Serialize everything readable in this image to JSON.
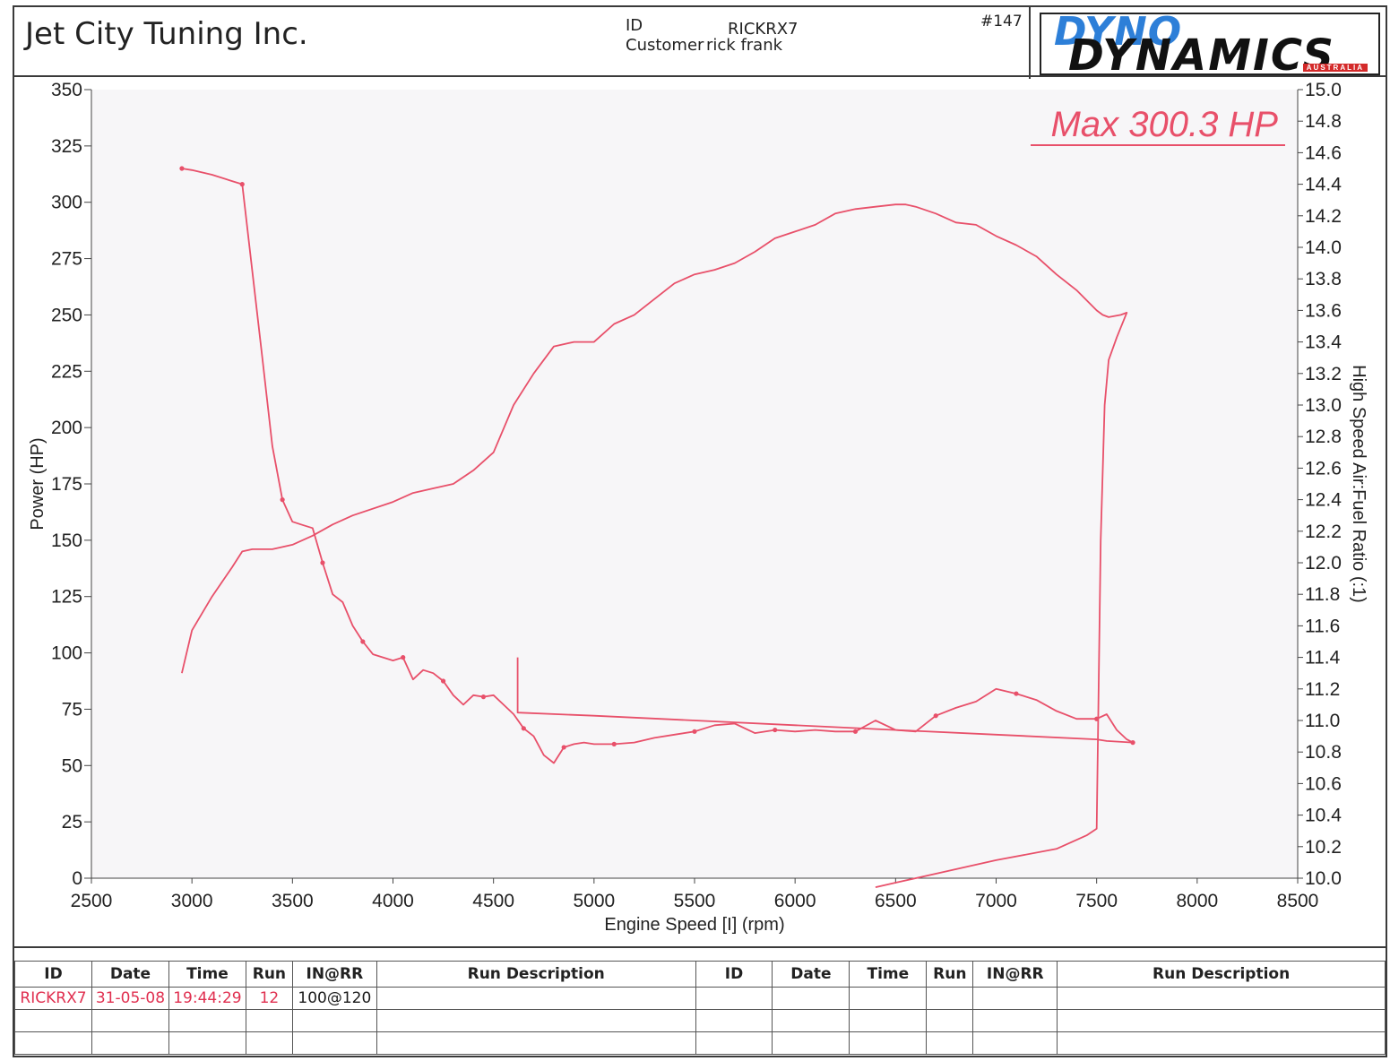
{
  "header": {
    "company": "Jet City Tuning Inc.",
    "id_label": "ID",
    "id_value": "RICKRX7",
    "customer_label": "Customer",
    "customer_value": "rick frank",
    "sheet_number": "#147",
    "logo_line1": "DYNO",
    "logo_line2": "DYNAMICS",
    "logo_sub": "AUSTRALIA"
  },
  "chart_data": {
    "type": "line",
    "annotation": "Max 300.3 HP",
    "xlabel": "Engine Speed [I] (rpm)",
    "ylabel_left": "Power (HP)",
    "ylabel_right": "High Speed Air:Fuel Ratio (:1)",
    "xlim": [
      2500,
      8500
    ],
    "ylim_left": [
      0,
      350
    ],
    "ylim_right": [
      10.0,
      15.0
    ],
    "x_ticks": [
      "2500",
      "3000",
      "3500",
      "4000",
      "4500",
      "5000",
      "5500",
      "6000",
      "6500",
      "7000",
      "7500",
      "8000",
      "8500"
    ],
    "y_left_ticks": [
      "0",
      "25",
      "50",
      "75",
      "100",
      "125",
      "150",
      "175",
      "200",
      "225",
      "250",
      "275",
      "300",
      "325",
      "350"
    ],
    "y_right_ticks": [
      "10.0",
      "10.2",
      "10.4",
      "10.6",
      "10.8",
      "11.0",
      "11.2",
      "11.4",
      "11.6",
      "11.8",
      "12.0",
      "12.2",
      "12.4",
      "12.6",
      "12.8",
      "13.0",
      "13.2",
      "13.4",
      "13.6",
      "13.8",
      "14.0",
      "14.2",
      "14.4",
      "14.6",
      "14.8",
      "15.0"
    ],
    "series_color": "#e8506a",
    "series": [
      {
        "axis": "left",
        "x": [
          2950,
          3000,
          3100,
          3200,
          3250,
          3300,
          3400,
          3500,
          3600,
          3700,
          3800,
          4000,
          4100,
          4200,
          4300,
          4400,
          4500,
          4600,
          4700,
          4800,
          4900,
          5000,
          5100,
          5200,
          5300,
          5400,
          5500,
          5600,
          5700,
          5800,
          5900,
          6000,
          6100,
          6200,
          6300,
          6400,
          6500,
          6550,
          6600,
          6700,
          6800,
          6900,
          7000,
          7100,
          7200,
          7300,
          7400,
          7500,
          7530,
          7560,
          7620,
          7650,
          7600,
          7560,
          7540,
          7520,
          7500,
          7450,
          7300,
          7000,
          6700,
          6500,
          6400
        ],
        "y": [
          91,
          110,
          125,
          138,
          145,
          146,
          146,
          148,
          152,
          157,
          161,
          167,
          171,
          173,
          175,
          181,
          189,
          210,
          224,
          236,
          238,
          238,
          246,
          250,
          257,
          264,
          268,
          270,
          273,
          278,
          284,
          287,
          290,
          295,
          297,
          298,
          299,
          299,
          298,
          295,
          291,
          290,
          285,
          281,
          276,
          268,
          261,
          252,
          250,
          249,
          250,
          251,
          240,
          230,
          210,
          150,
          22,
          19,
          13,
          8,
          2,
          -2,
          -4
        ]
      },
      {
        "axis": "right",
        "x": [
          2950,
          3000,
          3100,
          3200,
          3250,
          3300,
          3350,
          3400,
          3450,
          3500,
          3550,
          3600,
          3650,
          3700,
          3750,
          3800,
          3850,
          3900,
          3950,
          4000,
          4050,
          4100,
          4150,
          4200,
          4250,
          4300,
          4350,
          4400,
          4450,
          4500,
          4550,
          4600,
          4650,
          4700,
          4750,
          4800,
          4850,
          4900,
          4950,
          5000,
          5100,
          5200,
          5300,
          5400,
          5500,
          5600,
          5700,
          5800,
          5900,
          6000,
          6100,
          6200,
          6300,
          6400,
          6500,
          6600,
          6700,
          6800,
          6900,
          7000,
          7100,
          7200,
          7300,
          7400,
          7500,
          7550,
          7600,
          7650,
          7680
        ],
        "y": [
          14.5,
          14.49,
          14.46,
          14.42,
          14.4,
          13.85,
          13.3,
          12.74,
          12.4,
          12.26,
          12.24,
          12.22,
          12.0,
          11.8,
          11.75,
          11.6,
          11.5,
          11.42,
          11.4,
          11.38,
          11.4,
          11.26,
          11.32,
          11.3,
          11.25,
          11.16,
          11.1,
          11.16,
          11.15,
          11.16,
          11.1,
          11.04,
          10.95,
          10.9,
          10.78,
          10.73,
          10.83,
          10.85,
          10.86,
          10.85,
          10.85,
          10.86,
          10.89,
          10.91,
          10.93,
          10.97,
          10.98,
          10.92,
          10.94,
          10.93,
          10.94,
          10.93,
          10.93,
          11.0,
          10.94,
          10.93,
          11.03,
          11.08,
          11.12,
          11.2,
          11.17,
          11.13,
          11.06,
          11.01,
          11.01,
          11.04,
          10.94,
          10.88,
          10.86
        ]
      },
      {
        "axis": "right",
        "x": [
          4620,
          4620,
          5000,
          5500,
          6000,
          6500,
          7000,
          7500,
          7550,
          7680
        ],
        "y": [
          11.4,
          11.05,
          11.03,
          11.0,
          10.97,
          10.94,
          10.91,
          10.88,
          10.87,
          10.86
        ]
      }
    ],
    "grid": false
  },
  "table": {
    "headers": [
      "ID",
      "Date",
      "Time",
      "Run",
      "IN@RR",
      "Run Description",
      "ID",
      "Date",
      "Time",
      "Run",
      "IN@RR",
      "Run Description"
    ],
    "rows": [
      [
        "RICKRX7",
        "31-05-08",
        "19:44:29",
        "12",
        "100@120",
        "",
        "",
        "",
        "",
        "",
        "",
        ""
      ],
      [
        "",
        "",
        "",
        "",
        "",
        "",
        "",
        "",
        "",
        "",
        "",
        ""
      ],
      [
        "",
        "",
        "",
        "",
        "",
        "",
        "",
        "",
        "",
        "",
        "",
        ""
      ]
    ]
  }
}
